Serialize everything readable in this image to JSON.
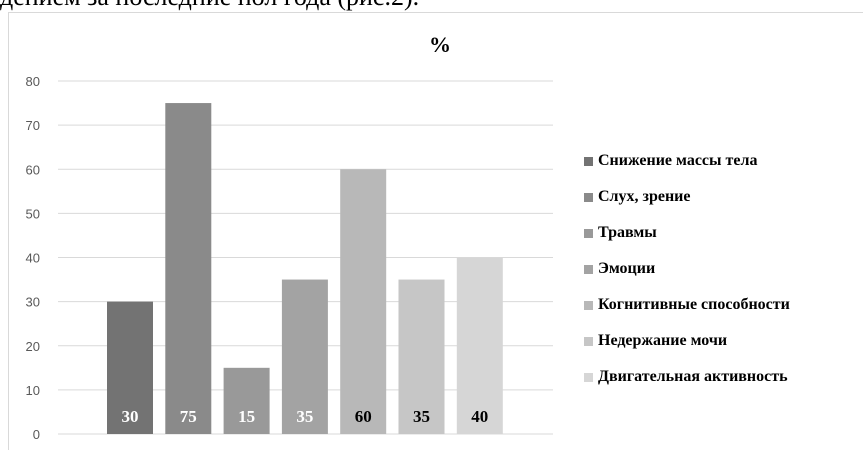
{
  "header": {
    "text": "дением за последние пол года (рис.2)."
  },
  "chart_data": {
    "type": "bar",
    "title": "%",
    "xlabel": "",
    "ylabel": "",
    "ylim": [
      0,
      80
    ],
    "yticks": [
      0,
      10,
      20,
      30,
      40,
      50,
      60,
      70,
      80
    ],
    "grid": true,
    "legend_position": "right",
    "series": [
      {
        "name": "Снижение массы тела",
        "value": 30,
        "color": "#737373"
      },
      {
        "name": "Слух, зрение",
        "value": 75,
        "color": "#8a8a8a"
      },
      {
        "name": "Травмы",
        "value": 15,
        "color": "#999999"
      },
      {
        "name": "Эмоции",
        "value": 35,
        "color": "#a3a3a3"
      },
      {
        "name": "Когнитивные способности",
        "value": 60,
        "color": "#b8b8b8"
      },
      {
        "name": "Недержание мочи",
        "value": 35,
        "color": "#c6c6c6"
      },
      {
        "name": "Двигательная активность",
        "value": 40,
        "color": "#d6d6d6"
      }
    ],
    "data_label_colors": [
      "#ffffff",
      "#ffffff",
      "#ffffff",
      "#ffffff",
      "#000000",
      "#000000",
      "#000000"
    ]
  }
}
